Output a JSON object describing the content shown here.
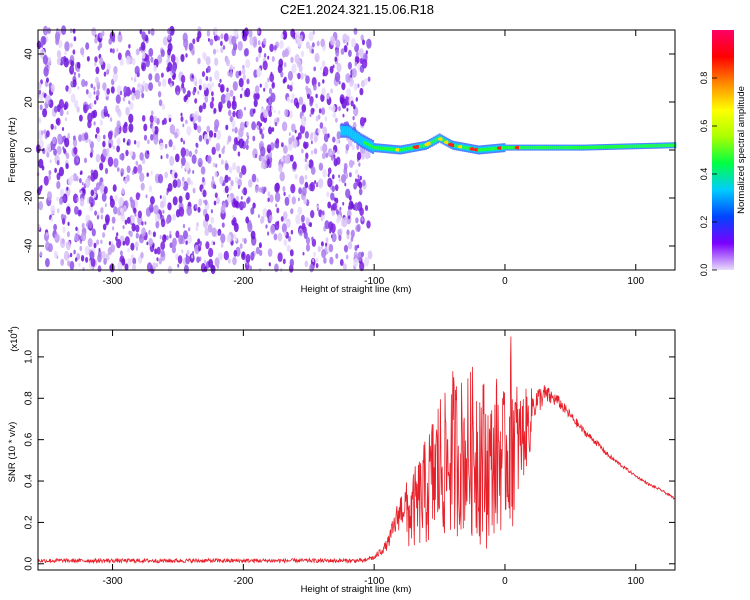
{
  "title": "C2E1.2024.321.15.06.R18",
  "colors": {
    "spectrogram_noise": "#7a1fe0",
    "signal_line": "#e8202a",
    "axes": "#000000"
  },
  "chart_data": [
    {
      "type": "heatmap",
      "name": "spectrogram",
      "title": "C2E1.2024.321.15.06.R18",
      "xlabel": "Height of straight line (km)",
      "ylabel": "Frequency (Hz)",
      "xlim": [
        -357,
        130
      ],
      "ylim": [
        -50,
        50
      ],
      "xticks": [
        -300,
        -200,
        -100,
        0,
        100
      ],
      "yticks": [
        -40,
        -20,
        0,
        20,
        40
      ],
      "xtick_labels": [
        "-300",
        "-200",
        "-100",
        "0",
        "100"
      ],
      "ytick_labels": [
        "-40",
        "-20",
        "0",
        "20",
        "40"
      ],
      "noise_region_km": [
        -357,
        -103
      ],
      "signal_track": {
        "center_freq_hz": [
          [
            -120,
            8
          ],
          [
            -110,
            4
          ],
          [
            -100,
            1
          ],
          [
            -80,
            0
          ],
          [
            -60,
            2
          ],
          [
            -50,
            5
          ],
          [
            -40,
            2
          ],
          [
            -20,
            0
          ],
          [
            0,
            1
          ],
          [
            20,
            1
          ],
          [
            60,
            1
          ],
          [
            130,
            2
          ]
        ],
        "peak_amplitude_region_km": [
          -90,
          10
        ]
      },
      "colorbar": {
        "label": "Normalized spectral amplitude",
        "range": [
          0,
          1
        ],
        "ticks": [
          0.0,
          0.2,
          0.4,
          0.6,
          0.8
        ],
        "tick_labels": [
          "0.0",
          "0.2",
          "0.4",
          "0.6",
          "0.8"
        ],
        "colors": [
          "#e8dcfa",
          "#7a00ff",
          "#0044ff",
          "#00ccff",
          "#00ff44",
          "#aaff00",
          "#ffff00",
          "#ff8800",
          "#ff0000",
          "#ff0066"
        ]
      }
    },
    {
      "type": "line",
      "name": "snr",
      "xlabel": "Height of straight line (km)",
      "ylabel": "SNR (10 * v/v)",
      "y_multiplier_label": "(x10",
      "y_multiplier_exp": "4",
      "y_multiplier_close": ")",
      "xlim": [
        -357,
        130
      ],
      "ylim": [
        -0.03,
        1.13
      ],
      "xticks": [
        -300,
        -200,
        -100,
        0,
        100
      ],
      "yticks": [
        0.0,
        0.2,
        0.4,
        0.6,
        0.8,
        1.0
      ],
      "xtick_labels": [
        "-300",
        "-200",
        "-100",
        "0",
        "100"
      ],
      "ytick_labels": [
        "0.0",
        "0.2",
        "0.4",
        "0.6",
        "0.8",
        "1.0"
      ],
      "baseline_value": 0.015,
      "envelope": {
        "x": [
          -357,
          -100,
          -90,
          -80,
          -70,
          -60,
          -50,
          -45,
          -40,
          -30,
          -20,
          -15,
          -10,
          -5,
          0,
          5,
          10,
          20,
          30,
          40,
          50,
          60,
          70,
          80,
          90,
          100,
          110,
          120,
          130
        ],
        "upper": [
          0.03,
          0.04,
          0.12,
          0.35,
          0.45,
          0.62,
          0.86,
          0.82,
          0.95,
          0.9,
          1.02,
          0.88,
          0.8,
          0.96,
          0.82,
          1.15,
          0.84,
          0.85,
          0.87,
          0.82,
          0.74,
          0.66,
          0.6,
          0.53,
          0.48,
          0.43,
          0.39,
          0.36,
          0.32
        ],
        "lower": [
          0.0,
          0.0,
          0.03,
          0.05,
          0.07,
          0.08,
          0.1,
          0.12,
          0.12,
          0.15,
          0.1,
          0.05,
          0.15,
          0.12,
          0.2,
          0.15,
          0.3,
          0.55,
          0.7,
          0.72,
          0.66,
          0.6,
          0.55,
          0.49,
          0.45,
          0.41,
          0.37,
          0.34,
          0.3
        ]
      }
    }
  ]
}
